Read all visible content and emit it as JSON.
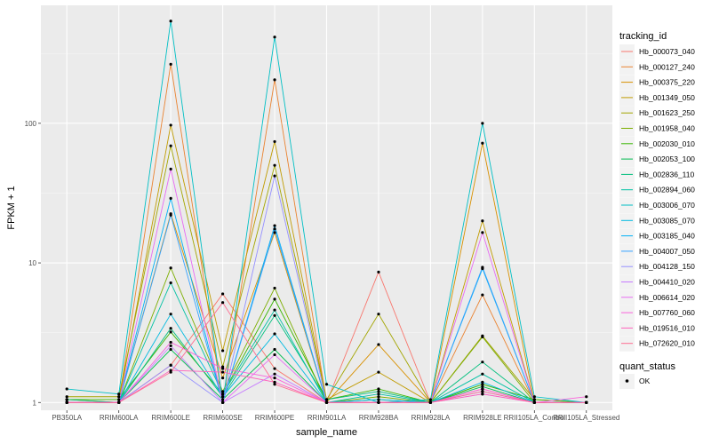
{
  "chart_data": {
    "type": "line",
    "title": "",
    "xlabel": "sample_name",
    "ylabel": "FPKM + 1",
    "y_scale": "log10",
    "ylim": [
      0.88,
      700
    ],
    "y_ticks": [
      1,
      10,
      100
    ],
    "y_tick_labels": [
      "1",
      "10",
      "100"
    ],
    "grid": true,
    "background": "#ebebeb",
    "categories": [
      "PB350LA",
      "RRIM600LA",
      "RRIM600LE",
      "RRIM600SE",
      "RRIM600PE",
      "RRIM901LA",
      "RRIM928BA",
      "RRIM928LA",
      "RRIM928LE",
      "RRII105LA_Control",
      "RRII105LA_Stressed"
    ],
    "legend": {
      "title": "tracking_id",
      "placement": "right"
    },
    "shape_legend": {
      "title": "quant_status",
      "entries": [
        "OK"
      ]
    },
    "series": [
      {
        "name": "Hb_000073_040",
        "color": "#F8766D",
        "values": [
          1.0,
          1.0,
          1.85,
          6.0,
          1.75,
          1.0,
          8.6,
          1.0,
          1.25,
          1.0,
          1.0
        ]
      },
      {
        "name": "Hb_000127_240",
        "color": "#EA8331",
        "values": [
          1.0,
          1.0,
          265,
          1.0,
          205,
          1.0,
          1.0,
          1.0,
          5.9,
          1.0,
          1.0
        ]
      },
      {
        "name": "Hb_000375_220",
        "color": "#D89000",
        "values": [
          1.0,
          1.0,
          22.5,
          1.5,
          16.5,
          1.0,
          2.6,
          1.0,
          72,
          1.0,
          1.0
        ]
      },
      {
        "name": "Hb_001349_050",
        "color": "#C09B00",
        "values": [
          1.05,
          1.0,
          97,
          2.35,
          74,
          1.05,
          1.65,
          1.0,
          20,
          1.0,
          1.0
        ]
      },
      {
        "name": "Hb_001623_250",
        "color": "#A3A500",
        "values": [
          1.1,
          1.1,
          69,
          1.8,
          50,
          1.05,
          4.3,
          1.0,
          3.0,
          1.05,
          1.0
        ]
      },
      {
        "name": "Hb_001958_040",
        "color": "#7CAE00",
        "values": [
          1.0,
          1.0,
          9.2,
          1.2,
          6.6,
          1.0,
          1.1,
          1.0,
          2.95,
          1.0,
          1.0
        ]
      },
      {
        "name": "Hb_002030_010",
        "color": "#39B600",
        "values": [
          1.05,
          1.05,
          3.2,
          1.15,
          5.5,
          1.05,
          1.25,
          1.0,
          1.35,
          1.05,
          1.0
        ]
      },
      {
        "name": "Hb_002053_100",
        "color": "#00BB4E",
        "values": [
          1.0,
          1.0,
          2.4,
          1.05,
          2.4,
          1.0,
          1.05,
          1.0,
          1.3,
          1.0,
          1.0
        ]
      },
      {
        "name": "Hb_002836_110",
        "color": "#00BF7D",
        "values": [
          1.05,
          1.0,
          3.4,
          1.1,
          4.2,
          1.05,
          1.2,
          1.0,
          1.95,
          1.0,
          1.0
        ]
      },
      {
        "name": "Hb_002894_060",
        "color": "#00C1A3",
        "values": [
          1.0,
          1.0,
          7.2,
          1.15,
          4.6,
          1.0,
          1.15,
          1.0,
          1.6,
          1.0,
          1.0
        ]
      },
      {
        "name": "Hb_003006_070",
        "color": "#00BFC4",
        "values": [
          1.25,
          1.15,
          540,
          1.0,
          415,
          1.35,
          1.0,
          1.05,
          100,
          1.1,
          1.0
        ]
      },
      {
        "name": "Hb_003085_070",
        "color": "#00BAE0",
        "values": [
          1.0,
          1.0,
          4.3,
          1.1,
          3.1,
          1.0,
          1.05,
          1.0,
          1.4,
          1.0,
          1.0
        ]
      },
      {
        "name": "Hb_003185_040",
        "color": "#00B0F6",
        "values": [
          1.0,
          1.0,
          29,
          1.0,
          18.5,
          1.0,
          1.0,
          1.0,
          9.1,
          1.0,
          1.0
        ]
      },
      {
        "name": "Hb_004007_050",
        "color": "#35A2FF",
        "values": [
          1.0,
          1.0,
          22,
          1.0,
          17.5,
          1.0,
          1.0,
          1.0,
          9.3,
          1.0,
          1.0
        ]
      },
      {
        "name": "Hb_004128_150",
        "color": "#9590FF",
        "values": [
          1.0,
          1.0,
          1.85,
          1.0,
          42,
          1.0,
          1.0,
          1.0,
          1.2,
          1.0,
          1.0
        ]
      },
      {
        "name": "Hb_004410_020",
        "color": "#C77CFF",
        "values": [
          1.0,
          1.0,
          2.55,
          1.0,
          1.6,
          1.0,
          1.0,
          1.0,
          1.15,
          1.0,
          1.0
        ]
      },
      {
        "name": "Hb_006614_020",
        "color": "#E76BF3",
        "values": [
          1.0,
          1.0,
          47,
          1.0,
          2.2,
          1.0,
          1.0,
          1.0,
          16.5,
          1.0,
          1.0
        ]
      },
      {
        "name": "Hb_007760_060",
        "color": "#FA62DB",
        "values": [
          1.0,
          1.0,
          2.7,
          1.75,
          1.5,
          1.0,
          1.0,
          1.0,
          1.25,
          1.0,
          1.1
        ]
      },
      {
        "name": "Hb_019516_010",
        "color": "#FF62BC",
        "values": [
          1.0,
          1.0,
          1.7,
          1.65,
          1.4,
          1.0,
          1.0,
          1.0,
          1.15,
          1.0,
          1.0
        ]
      },
      {
        "name": "Hb_072620_010",
        "color": "#FF6C91",
        "values": [
          1.0,
          1.0,
          1.65,
          5.2,
          1.35,
          1.0,
          1.0,
          1.0,
          1.2,
          1.0,
          1.0
        ]
      }
    ]
  }
}
